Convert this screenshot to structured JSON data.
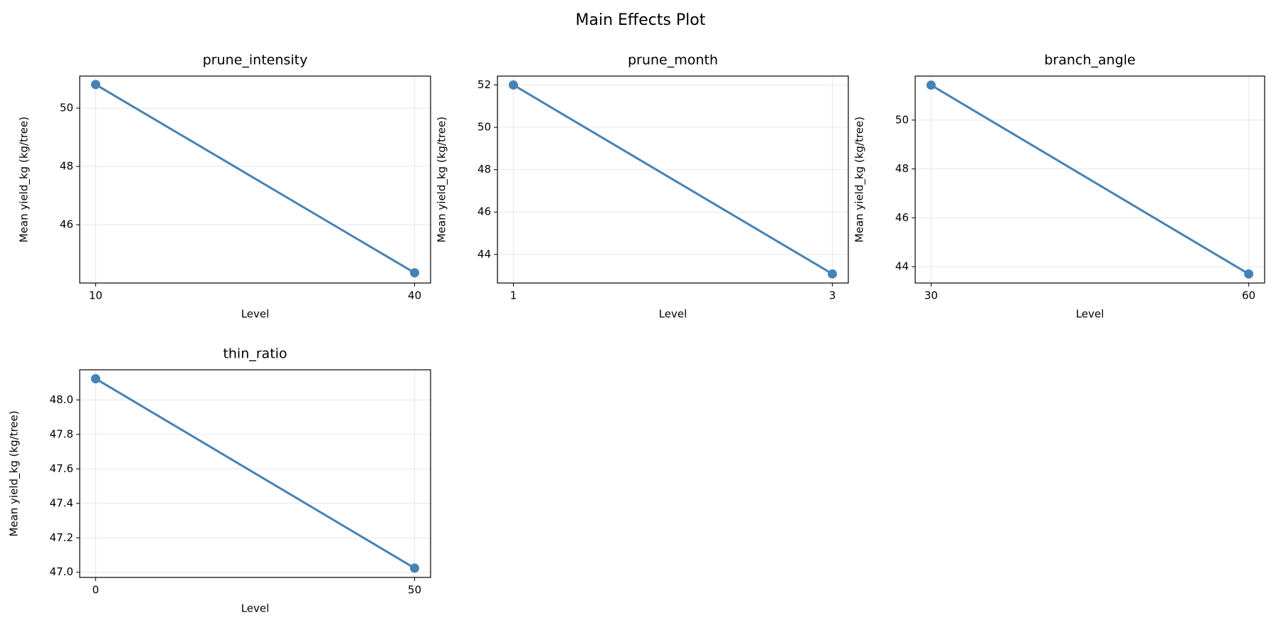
{
  "title": "Main Effects Plot",
  "chart_data": [
    {
      "type": "line",
      "title": "prune_intensity",
      "xlabel": "Level",
      "ylabel": "Mean yield_kg (kg/tree)",
      "x": [
        10,
        40
      ],
      "values": [
        50.81,
        44.35
      ],
      "color": "#4682b4",
      "grid": true,
      "xlim": [
        8.5,
        41.5
      ],
      "xticks": [
        10,
        40
      ],
      "ylim": [
        44.0,
        51.1
      ],
      "yticks": [
        46,
        48,
        50
      ]
    },
    {
      "type": "line",
      "title": "prune_month",
      "xlabel": "Level",
      "ylabel": "Mean yield_kg (kg/tree)",
      "x": [
        1,
        3
      ],
      "values": [
        52.0,
        43.08
      ],
      "color": "#4682b4",
      "grid": true,
      "xlim": [
        0.9,
        3.1
      ],
      "xticks": [
        1,
        3
      ],
      "ylim": [
        42.65,
        52.42
      ],
      "yticks": [
        44,
        46,
        48,
        50,
        52
      ]
    },
    {
      "type": "line",
      "title": "branch_angle",
      "xlabel": "Level",
      "ylabel": "Mean yield_kg (kg/tree)",
      "x": [
        30,
        60
      ],
      "values": [
        51.43,
        43.7
      ],
      "color": "#4682b4",
      "grid": true,
      "xlim": [
        28.5,
        61.5
      ],
      "xticks": [
        30,
        60
      ],
      "ylim": [
        43.33,
        51.8
      ],
      "yticks": [
        44,
        46,
        48,
        50
      ]
    },
    {
      "type": "line",
      "title": "thin_ratio",
      "xlabel": "Level",
      "ylabel": "Mean yield_kg (kg/tree)",
      "x": [
        0,
        50
      ],
      "values": [
        48.123,
        47.024
      ],
      "color": "#4682b4",
      "grid": true,
      "xlim": [
        -2.5,
        52.5
      ],
      "xticks": [
        0,
        50
      ],
      "ylim": [
        46.97,
        48.175
      ],
      "yticks": [
        {
          "value": 47,
          "label": "47.0"
        },
        47.2,
        47.4,
        47.6,
        47.8,
        {
          "value": 48,
          "label": "48.0"
        }
      ]
    }
  ]
}
